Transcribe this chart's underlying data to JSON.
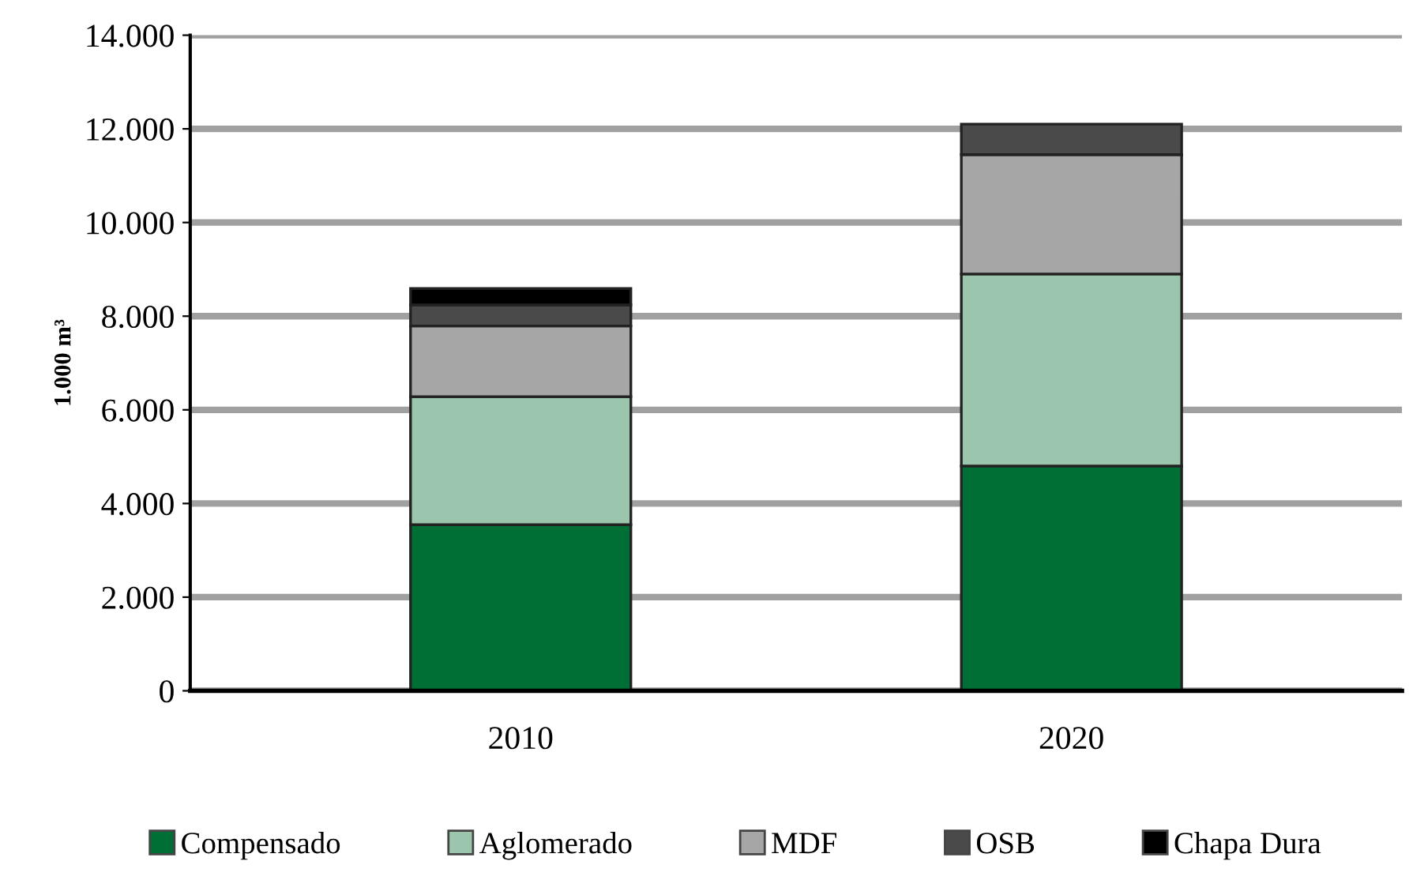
{
  "chart_data": {
    "type": "bar",
    "stacked": true,
    "ylabel": "1.000 m³",
    "categories": [
      "2010",
      "2020"
    ],
    "series": [
      {
        "name": "Compensado",
        "color": "#006f35",
        "values": [
          3550,
          4800
        ]
      },
      {
        "name": "Aglomerado",
        "color": "#9bc6ad",
        "values": [
          2730,
          4100
        ]
      },
      {
        "name": "MDF",
        "color": "#a6a6a6",
        "values": [
          1510,
          2550
        ]
      },
      {
        "name": "OSB",
        "color": "#4a4a4a",
        "values": [
          450,
          650
        ]
      },
      {
        "name": "Chapa Dura",
        "color": "#000000",
        "values": [
          350,
          null
        ]
      }
    ],
    "ylim": [
      0,
      14000
    ],
    "yticks": [
      0,
      {
        "value": 2000,
        "label": "2.000"
      },
      {
        "value": 4000,
        "label": "4.000"
      },
      {
        "value": 6000,
        "label": "6.000"
      },
      {
        "value": 8000,
        "label": "8.000"
      },
      {
        "value": 10000,
        "label": "10.000"
      },
      {
        "value": 12000,
        "label": "12.000"
      },
      {
        "value": 14000,
        "label": "14.000"
      }
    ],
    "grid": "y",
    "legend": "bottom"
  }
}
